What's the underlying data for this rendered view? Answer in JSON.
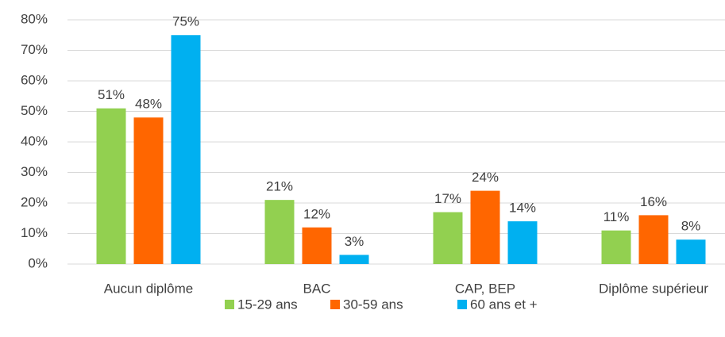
{
  "chart_data": {
    "type": "bar",
    "categories": [
      "Aucun diplôme",
      "BAC",
      "CAP, BEP",
      "Diplôme supérieur"
    ],
    "series": [
      {
        "name": "15-29 ans",
        "color": "#92d050",
        "values": [
          51,
          21,
          17,
          11
        ],
        "value_labels": [
          "51%",
          "21%",
          "17%",
          "11%"
        ]
      },
      {
        "name": "30-59 ans",
        "color": "#ff6600",
        "values": [
          48,
          12,
          24,
          16
        ],
        "value_labels": [
          "48%",
          "12%",
          "24%",
          "16%"
        ]
      },
      {
        "name": "60 ans et +",
        "color": "#00b0f0",
        "values": [
          75,
          3,
          14,
          8
        ],
        "value_labels": [
          "75%",
          "3%",
          "14%",
          "8%"
        ]
      }
    ],
    "ylim": [
      0,
      80
    ],
    "yticks": [
      {
        "value": 0,
        "label": "0%"
      },
      {
        "value": 10,
        "label": "10%"
      },
      {
        "value": 20,
        "label": "20%"
      },
      {
        "value": 30,
        "label": "30%"
      },
      {
        "value": 40,
        "label": "40%"
      },
      {
        "value": 50,
        "label": "50%"
      },
      {
        "value": 60,
        "label": "60%"
      },
      {
        "value": 70,
        "label": "70%"
      },
      {
        "value": 80,
        "label": "80%"
      }
    ],
    "grid": true,
    "legend": "bottom"
  }
}
